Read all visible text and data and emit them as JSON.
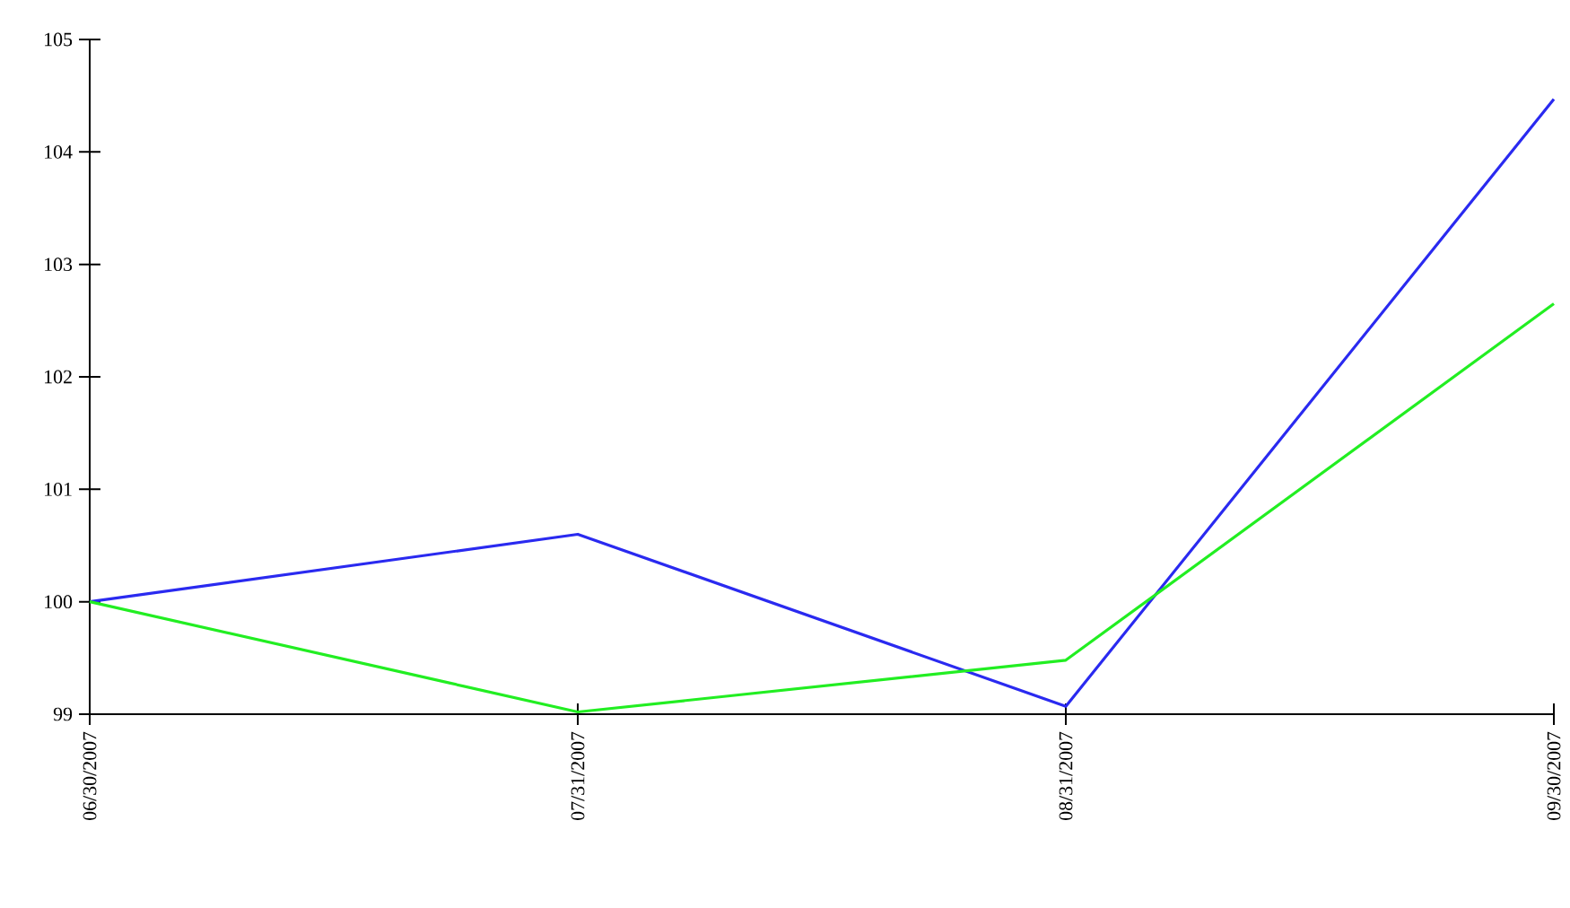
{
  "chart_data": {
    "type": "line",
    "categories": [
      "06/30/2007",
      "07/31/2007",
      "08/31/2007",
      "09/30/2007"
    ],
    "series": [
      {
        "color": "#2a2af0",
        "values": [
          100,
          100.6,
          99.07,
          104.47
        ]
      },
      {
        "color": "#22ee22",
        "values": [
          100,
          99.02,
          99.48,
          102.65
        ]
      }
    ],
    "ylim": [
      99,
      105
    ],
    "yticks": [
      99,
      100,
      101,
      102,
      103,
      104,
      105
    ],
    "grid": false,
    "marker": "none",
    "line_style": "solid"
  }
}
